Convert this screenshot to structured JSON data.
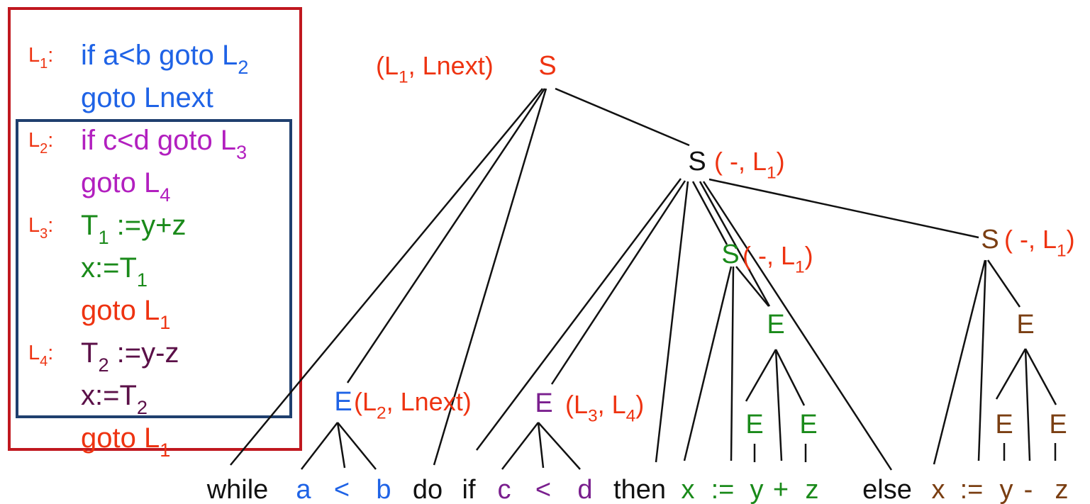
{
  "colors": {
    "red_label": "#ee3311",
    "blue": "#1f63e6",
    "magenta": "#b21fbf",
    "green": "#1a8a1a",
    "purple": "#7a1f8e",
    "dark_purple": "#5b1048",
    "brown": "#7a3e12",
    "black": "#111111",
    "outer_box": "#c0181f",
    "inner_box": "#1f3f6e"
  },
  "code_box": {
    "lines": [
      {
        "label_main": "L",
        "label_sub": "1",
        "label_colon": ":",
        "parts": [
          {
            "text": "if a<b goto L",
            "kind": "t"
          },
          {
            "text": "2",
            "kind": "sub"
          }
        ],
        "color": "blue"
      },
      {
        "label_main": "",
        "label_sub": "",
        "label_colon": "",
        "parts": [
          {
            "text": "goto Lnext",
            "kind": "t"
          }
        ],
        "color": "blue"
      },
      {
        "label_main": "L",
        "label_sub": "2",
        "label_colon": ":",
        "parts": [
          {
            "text": "if c<d goto L",
            "kind": "t"
          },
          {
            "text": "3",
            "kind": "sub"
          }
        ],
        "color": "magenta"
      },
      {
        "label_main": "",
        "label_sub": "",
        "label_colon": "",
        "parts": [
          {
            "text": "goto L",
            "kind": "t"
          },
          {
            "text": "4",
            "kind": "sub"
          }
        ],
        "color": "magenta"
      },
      {
        "label_main": "L",
        "label_sub": "3",
        "label_colon": ":",
        "parts": [
          {
            "text": "T",
            "kind": "t"
          },
          {
            "text": "1",
            "kind": "sub"
          },
          {
            "text": " :=y+z",
            "kind": "t"
          }
        ],
        "color": "green"
      },
      {
        "label_main": "",
        "label_sub": "",
        "label_colon": "",
        "parts": [
          {
            "text": "x:=T",
            "kind": "t"
          },
          {
            "text": "1",
            "kind": "sub"
          }
        ],
        "color": "green"
      },
      {
        "label_main": "",
        "label_sub": "",
        "label_colon": "",
        "parts": [
          {
            "text": "goto L",
            "kind": "t"
          },
          {
            "text": "1",
            "kind": "sub"
          }
        ],
        "color": "red_label"
      },
      {
        "label_main": "L",
        "label_sub": "4",
        "label_colon": ":",
        "parts": [
          {
            "text": "T",
            "kind": "t"
          },
          {
            "text": "2",
            "kind": "sub"
          },
          {
            "text": " :=y-z",
            "kind": "t"
          }
        ],
        "color": "dark_purple"
      },
      {
        "label_main": "",
        "label_sub": "",
        "label_colon": "",
        "parts": [
          {
            "text": "x:=T",
            "kind": "t"
          },
          {
            "text": "2",
            "kind": "sub"
          }
        ],
        "color": "dark_purple"
      },
      {
        "label_main": "",
        "label_sub": "",
        "label_colon": "",
        "parts": [
          {
            "text": "goto L",
            "kind": "t"
          },
          {
            "text": "1",
            "kind": "sub"
          }
        ],
        "color": "red_label"
      }
    ]
  },
  "tree": {
    "nodes": [
      {
        "id": "S_root",
        "symbol": "S",
        "color": "red_label"
      },
      {
        "id": "S_if",
        "symbol": "S",
        "color": "black"
      },
      {
        "id": "S_then",
        "symbol": "S",
        "color": "green"
      },
      {
        "id": "S_else",
        "symbol": "S",
        "color": "brown"
      },
      {
        "id": "E_while",
        "symbol": "E",
        "color": "blue"
      },
      {
        "id": "E_if",
        "symbol": "E",
        "color": "purple"
      },
      {
        "id": "E_then",
        "symbol": "E",
        "color": "green"
      },
      {
        "id": "E_then_l",
        "symbol": "E",
        "color": "green"
      },
      {
        "id": "E_then_r",
        "symbol": "E",
        "color": "green"
      },
      {
        "id": "E_else",
        "symbol": "E",
        "color": "brown"
      },
      {
        "id": "E_else_l",
        "symbol": "E",
        "color": "brown"
      },
      {
        "id": "E_else_r",
        "symbol": "E",
        "color": "brown"
      }
    ],
    "attributes": [
      {
        "node": "S_root",
        "parts": [
          {
            "text": "(L",
            "kind": "t"
          },
          {
            "text": "1",
            "kind": "sub"
          },
          {
            "text": ",  Lnext)",
            "kind": "t"
          }
        ]
      },
      {
        "node": "S_if",
        "parts": [
          {
            "text": "( -, L",
            "kind": "t"
          },
          {
            "text": "1",
            "kind": "sub"
          },
          {
            "text": ")",
            "kind": "t"
          }
        ]
      },
      {
        "node": "S_then",
        "parts": [
          {
            "text": "( -, L",
            "kind": "t"
          },
          {
            "text": "1",
            "kind": "sub"
          },
          {
            "text": ")",
            "kind": "t"
          }
        ]
      },
      {
        "node": "S_else",
        "parts": [
          {
            "text": "( -, L",
            "kind": "t"
          },
          {
            "text": "1",
            "kind": "sub"
          },
          {
            "text": ")",
            "kind": "t"
          }
        ]
      },
      {
        "node": "E_while",
        "parts": [
          {
            "text": "(L",
            "kind": "t"
          },
          {
            "text": "2",
            "kind": "sub"
          },
          {
            "text": ", Lnext)",
            "kind": "t"
          }
        ]
      },
      {
        "node": "E_if",
        "parts": [
          {
            "text": "(L",
            "kind": "t"
          },
          {
            "text": "3",
            "kind": "sub"
          },
          {
            "text": ", L",
            "kind": "t"
          },
          {
            "text": "4",
            "kind": "sub"
          },
          {
            "text": ")",
            "kind": "t"
          }
        ]
      }
    ],
    "tokens": [
      {
        "id": "t_while",
        "text": "while",
        "color": "black"
      },
      {
        "id": "t_a",
        "text": "a",
        "color": "blue"
      },
      {
        "id": "t_lt1",
        "text": "<",
        "color": "blue"
      },
      {
        "id": "t_b",
        "text": "b",
        "color": "blue"
      },
      {
        "id": "t_do",
        "text": "do",
        "color": "black"
      },
      {
        "id": "t_if",
        "text": "if",
        "color": "black"
      },
      {
        "id": "t_c",
        "text": "c",
        "color": "purple"
      },
      {
        "id": "t_lt2",
        "text": "<",
        "color": "purple"
      },
      {
        "id": "t_d",
        "text": "d",
        "color": "purple"
      },
      {
        "id": "t_then",
        "text": "then",
        "color": "black"
      },
      {
        "id": "t_x1",
        "text": "x",
        "color": "green"
      },
      {
        "id": "t_assign1",
        "text": ":=",
        "color": "green"
      },
      {
        "id": "t_y1",
        "text": "y",
        "color": "green"
      },
      {
        "id": "t_plus",
        "text": "+",
        "color": "green"
      },
      {
        "id": "t_z1",
        "text": "z",
        "color": "green"
      },
      {
        "id": "t_else",
        "text": "else",
        "color": "black"
      },
      {
        "id": "t_x2",
        "text": "x",
        "color": "brown"
      },
      {
        "id": "t_assign2",
        "text": ":=",
        "color": "brown"
      },
      {
        "id": "t_y2",
        "text": "y",
        "color": "brown"
      },
      {
        "id": "t_minus",
        "text": "-",
        "color": "brown"
      },
      {
        "id": "t_z2",
        "text": "z",
        "color": "brown"
      }
    ]
  }
}
